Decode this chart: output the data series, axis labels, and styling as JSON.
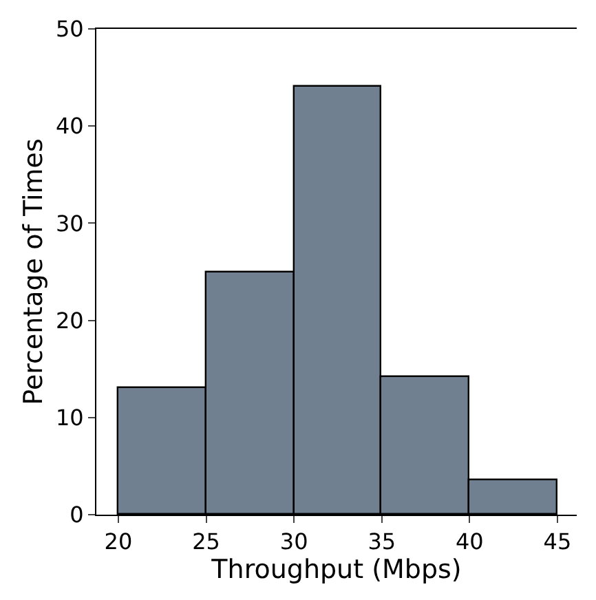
{
  "chart_data": {
    "type": "histogram",
    "xlabel": "Throughput (Mbps)",
    "ylabel": "Percentage of Times",
    "bins": [
      20,
      25,
      30,
      35,
      40,
      45
    ],
    "values": [
      13.1,
      25,
      44,
      14.2,
      3.5
    ],
    "color": "#708090",
    "xlim": [
      18.75,
      46.1
    ],
    "xticks": [
      20,
      25,
      30,
      35,
      40,
      45
    ],
    "ylim": [
      0,
      50
    ],
    "yticks": [
      0,
      10,
      20,
      30,
      40,
      50
    ]
  }
}
